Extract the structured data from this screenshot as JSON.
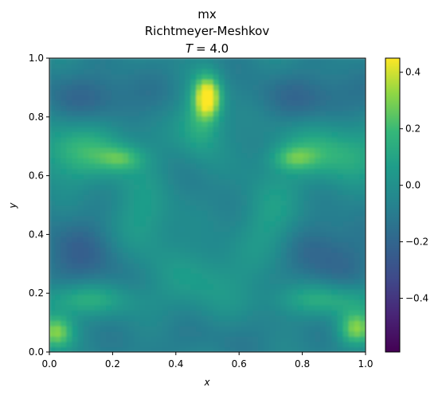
{
  "chart_data": {
    "type": "heatmap",
    "title_lines": [
      "mx",
      "Richtmeyer-Meshkov"
    ],
    "title_time_symbol": "T",
    "title_time_value": "= 4.0",
    "xlabel": "x",
    "ylabel": "y",
    "xlim": [
      0.0,
      1.0
    ],
    "ylim": [
      0.0,
      1.0
    ],
    "x_ticks": [
      "0.0",
      "0.2",
      "0.4",
      "0.6",
      "0.8",
      "1.0"
    ],
    "y_ticks": [
      "0.0",
      "0.2",
      "0.4",
      "0.6",
      "0.8",
      "1.0"
    ],
    "colormap": "viridis",
    "colorbar_range": [
      -0.59,
      0.45
    ],
    "colorbar_ticks": [
      "-0.4",
      "-0.2",
      "0.0",
      "0.2",
      "0.4"
    ],
    "colorbar_tick_values": [
      -0.4,
      -0.2,
      0.0,
      0.2,
      0.4
    ],
    "background_value": -0.06,
    "features": [
      {
        "x": 0.5,
        "y": 0.87,
        "sx": 0.03,
        "sy": 0.05,
        "value": 0.52
      },
      {
        "x": 0.48,
        "y": 0.78,
        "sx": 0.05,
        "sy": 0.08,
        "value": 0.18
      },
      {
        "x": 0.15,
        "y": 0.87,
        "sx": 0.14,
        "sy": 0.06,
        "value": -0.2
      },
      {
        "x": 0.84,
        "y": 0.87,
        "sx": 0.14,
        "sy": 0.06,
        "value": -0.2
      },
      {
        "x": 0.1,
        "y": 0.68,
        "sx": 0.12,
        "sy": 0.07,
        "value": 0.2
      },
      {
        "x": 0.9,
        "y": 0.68,
        "sx": 0.12,
        "sy": 0.07,
        "value": 0.2
      },
      {
        "x": 0.23,
        "y": 0.66,
        "sx": 0.05,
        "sy": 0.03,
        "value": 0.16
      },
      {
        "x": 0.77,
        "y": 0.66,
        "sx": 0.05,
        "sy": 0.03,
        "value": 0.16
      },
      {
        "x": 0.1,
        "y": 0.33,
        "sx": 0.1,
        "sy": 0.09,
        "value": -0.22
      },
      {
        "x": 0.87,
        "y": 0.33,
        "sx": 0.1,
        "sy": 0.09,
        "value": -0.22
      },
      {
        "x": 0.5,
        "y": 0.5,
        "sx": 0.12,
        "sy": 0.12,
        "value": -0.08
      },
      {
        "x": 0.3,
        "y": 0.45,
        "sx": 0.07,
        "sy": 0.1,
        "value": 0.1
      },
      {
        "x": 0.7,
        "y": 0.45,
        "sx": 0.07,
        "sy": 0.1,
        "value": 0.1
      },
      {
        "x": 0.1,
        "y": 0.18,
        "sx": 0.12,
        "sy": 0.04,
        "value": 0.18
      },
      {
        "x": 0.88,
        "y": 0.18,
        "sx": 0.12,
        "sy": 0.04,
        "value": 0.18
      },
      {
        "x": 0.02,
        "y": 0.07,
        "sx": 0.04,
        "sy": 0.04,
        "value": 0.35
      },
      {
        "x": 0.97,
        "y": 0.08,
        "sx": 0.04,
        "sy": 0.04,
        "value": 0.33
      },
      {
        "x": 0.5,
        "y": 0.25,
        "sx": 0.1,
        "sy": 0.08,
        "value": 0.08
      },
      {
        "x": 0.5,
        "y": 0.05,
        "sx": 0.25,
        "sy": 0.05,
        "value": -0.1
      }
    ]
  }
}
